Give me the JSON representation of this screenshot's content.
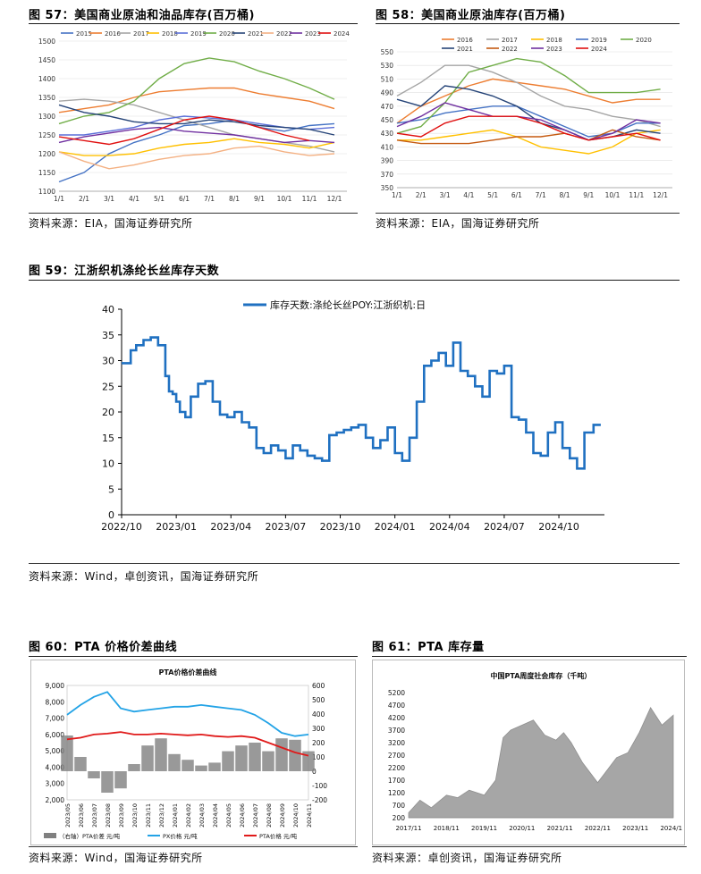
{
  "figures": {
    "f57": {
      "title": "图 57：美国商业原油和油品库存(百万桶)",
      "source": "资料来源：EIA，国海证券研究所"
    },
    "f58": {
      "title": "图 58：美国商业原油库存(百万桶)",
      "source": "资料来源：EIA，国海证券研究所"
    },
    "f59": {
      "title": "图 59：江浙织机涤纶长丝库存天数",
      "source": "资料来源：Wind，卓创资讯，国海证券研究所"
    },
    "f60": {
      "title": "图 60：PTA 价格价差曲线",
      "source": "资料来源：Wind，国海证券研究所"
    },
    "f61": {
      "title": "图 61：PTA 库存量",
      "source": "资料来源：卓创资讯，国海证券研究所"
    }
  },
  "chart_data": [
    {
      "id": "f57",
      "type": "line",
      "title": "",
      "x_tick_labels": [
        "1/1",
        "2/1",
        "3/1",
        "4/1",
        "5/1",
        "6/1",
        "7/1",
        "8/1",
        "9/1",
        "10/1",
        "11/1",
        "12/1"
      ],
      "y_ticks": [
        1100,
        1150,
        1200,
        1250,
        1300,
        1350,
        1400,
        1450,
        1500
      ],
      "ylim": [
        1100,
        1500
      ],
      "legend_position": "top",
      "x": [
        0,
        2,
        4,
        6,
        8,
        10,
        12,
        14,
        16,
        18,
        20,
        22
      ],
      "series": [
        {
          "name": "2015",
          "color": "#4472c4",
          "values": [
            1125,
            1150,
            1200,
            1230,
            1250,
            1275,
            1280,
            1290,
            1270,
            1260,
            1275,
            1280
          ]
        },
        {
          "name": "2016",
          "color": "#ed7d31",
          "values": [
            1310,
            1320,
            1330,
            1350,
            1365,
            1370,
            1375,
            1375,
            1360,
            1350,
            1340,
            1320
          ]
        },
        {
          "name": "2017",
          "color": "#a5a5a5",
          "values": [
            1340,
            1345,
            1340,
            1330,
            1310,
            1290,
            1270,
            1250,
            1240,
            1230,
            1220,
            1205
          ]
        },
        {
          "name": "2018",
          "color": "#ffc000",
          "values": [
            1205,
            1195,
            1195,
            1200,
            1215,
            1225,
            1230,
            1240,
            1230,
            1225,
            1215,
            1230
          ]
        },
        {
          "name": "2019",
          "color": "#5b6fd8",
          "values": [
            1250,
            1250,
            1260,
            1270,
            1290,
            1300,
            1295,
            1290,
            1280,
            1270,
            1265,
            1270
          ]
        },
        {
          "name": "2020",
          "color": "#70ad47",
          "values": [
            1280,
            1300,
            1310,
            1340,
            1400,
            1440,
            1455,
            1445,
            1420,
            1400,
            1375,
            1345
          ]
        },
        {
          "name": "2021",
          "color": "#264478",
          "values": [
            1330,
            1310,
            1300,
            1285,
            1280,
            1280,
            1290,
            1285,
            1275,
            1270,
            1265,
            1250
          ]
        },
        {
          "name": "2022",
          "color": "#f4b183",
          "values": [
            1205,
            1180,
            1160,
            1170,
            1185,
            1195,
            1200,
            1215,
            1220,
            1205,
            1195,
            1200
          ]
        },
        {
          "name": "2023",
          "color": "#7030a0",
          "values": [
            1230,
            1245,
            1255,
            1265,
            1270,
            1260,
            1255,
            1250,
            1240,
            1230,
            1235,
            1230
          ]
        },
        {
          "name": "2024",
          "color": "#e01010",
          "values": [
            1245,
            1235,
            1225,
            1240,
            1265,
            1290,
            1300,
            1290,
            1270,
            1250,
            1235,
            null
          ]
        }
      ]
    },
    {
      "id": "f58",
      "type": "line",
      "title": "",
      "x_tick_labels": [
        "1/1",
        "2/1",
        "3/1",
        "4/1",
        "5/1",
        "6/1",
        "7/1",
        "8/1",
        "9/1",
        "10/1",
        "11/1",
        "12/1"
      ],
      "y_ticks": [
        350,
        370,
        390,
        410,
        430,
        450,
        470,
        490,
        510,
        530,
        550
      ],
      "ylim": [
        350,
        550
      ],
      "legend_position": "top",
      "x": [
        0,
        2,
        4,
        6,
        8,
        10,
        12,
        14,
        16,
        18,
        20,
        22
      ],
      "series": [
        {
          "name": "2016",
          "color": "#ed7d31",
          "values": [
            445,
            470,
            485,
            500,
            510,
            505,
            500,
            495,
            485,
            475,
            480,
            480
          ]
        },
        {
          "name": "2017",
          "color": "#a5a5a5",
          "values": [
            485,
            505,
            530,
            530,
            520,
            505,
            485,
            470,
            465,
            455,
            450,
            440
          ]
        },
        {
          "name": "2018",
          "color": "#ffc000",
          "values": [
            420,
            420,
            425,
            430,
            435,
            425,
            410,
            405,
            400,
            410,
            430,
            435
          ]
        },
        {
          "name": "2019",
          "color": "#4472c4",
          "values": [
            445,
            450,
            460,
            465,
            470,
            470,
            455,
            440,
            425,
            430,
            445,
            445
          ]
        },
        {
          "name": "2020",
          "color": "#70ad47",
          "values": [
            430,
            440,
            475,
            520,
            530,
            540,
            535,
            515,
            490,
            490,
            490,
            495
          ]
        },
        {
          "name": "2021",
          "color": "#264478",
          "values": [
            480,
            470,
            500,
            495,
            485,
            470,
            445,
            435,
            420,
            425,
            435,
            430
          ]
        },
        {
          "name": "2022",
          "color": "#c55a11",
          "values": [
            420,
            415,
            415,
            415,
            420,
            425,
            425,
            430,
            420,
            435,
            425,
            420
          ]
        },
        {
          "name": "2023",
          "color": "#7030a0",
          "values": [
            440,
            455,
            475,
            465,
            455,
            455,
            450,
            435,
            420,
            430,
            450,
            445
          ]
        },
        {
          "name": "2024",
          "color": "#e01010",
          "values": [
            430,
            425,
            445,
            455,
            455,
            455,
            445,
            430,
            420,
            425,
            430,
            420
          ]
        }
      ]
    },
    {
      "id": "f59",
      "type": "line",
      "title": "",
      "legend": [
        "库存天数:涤纶长丝POY:江浙织机:日"
      ],
      "legend_position": "top",
      "x_tick_labels": [
        "2022/10",
        "2023/01",
        "2023/04",
        "2023/07",
        "2023/10",
        "2024/01",
        "2024/04",
        "2024/07",
        "2024/10"
      ],
      "y_ticks": [
        0,
        5,
        10,
        15,
        20,
        25,
        30,
        35,
        40
      ],
      "ylim": [
        0,
        40
      ],
      "xlim": [
        0,
        26.5
      ],
      "color": "#1f70c1",
      "x": [
        0,
        0.5,
        0.8,
        1.2,
        1.6,
        2.0,
        2.4,
        2.6,
        2.8,
        3.0,
        3.2,
        3.5,
        3.8,
        4.2,
        4.6,
        5.0,
        5.4,
        5.8,
        6.2,
        6.6,
        7.0,
        7.4,
        7.8,
        8.2,
        8.6,
        9.0,
        9.4,
        9.8,
        10.2,
        10.6,
        11.0,
        11.4,
        11.8,
        12.2,
        12.6,
        13.0,
        13.4,
        13.8,
        14.2,
        14.6,
        15.0,
        15.4,
        15.8,
        16.2,
        16.6,
        17.0,
        17.4,
        17.8,
        18.2,
        18.6,
        19.0,
        19.4,
        19.8,
        20.2,
        20.6,
        21.0,
        21.4,
        21.8,
        22.2,
        22.6,
        23.0,
        23.4,
        23.8,
        24.2,
        24.6,
        25.0,
        25.4,
        25.9
      ],
      "values": [
        29.5,
        32,
        33,
        34,
        34.5,
        33,
        27,
        24,
        23.5,
        22,
        20,
        19,
        23,
        25.5,
        26,
        22,
        19.5,
        19,
        20,
        18,
        17,
        13,
        12,
        13.5,
        12.5,
        11,
        13.5,
        12.5,
        11.5,
        11,
        10.5,
        15.5,
        16,
        16.5,
        17,
        17.5,
        15,
        13,
        14.5,
        17,
        12,
        10.5,
        15,
        22,
        29,
        30,
        31.5,
        29,
        33.5,
        28,
        27,
        25,
        23,
        28,
        27.5,
        29,
        19,
        18.5,
        16,
        12,
        11.5,
        16,
        18,
        13,
        11,
        9,
        16,
        17.5
      ]
    },
    {
      "id": "f60",
      "type": "line",
      "title": "PTA价格价差曲线",
      "x_tick_labels": [
        "2023/05",
        "2023/06",
        "2023/07",
        "2023/08",
        "2023/09",
        "2023/10",
        "2023/11",
        "2023/12",
        "2024/01",
        "2024/02",
        "2024/03",
        "2024/04",
        "2024/05",
        "2024/06",
        "2024/07",
        "2024/08",
        "2024/09",
        "2024/10",
        "2024/11"
      ],
      "y_left_ticks": [
        2000,
        3000,
        4000,
        5000,
        6000,
        7000,
        8000,
        9000
      ],
      "y_left_tick_labels": [
        "2,000",
        "3,000",
        "4,000",
        "5,000",
        "6,000",
        "7,000",
        "8,000",
        "9,000"
      ],
      "y_right_ticks": [
        -200,
        -100,
        0,
        100,
        200,
        300,
        400,
        500,
        600
      ],
      "ylim_left": [
        2000,
        9000
      ],
      "ylim_right": [
        -200,
        600
      ],
      "legend": [
        "（右轴）PTA价差 元/吨",
        "PX价格 元/吨",
        "PTA价格 元/吨"
      ],
      "legend_position": "bottom",
      "x": [
        0,
        1,
        2,
        3,
        4,
        5,
        6,
        7,
        8,
        9,
        10,
        11,
        12,
        13,
        14,
        15,
        16,
        17,
        18
      ],
      "series": [
        {
          "name": "（右轴）PTA价差 元/吨",
          "axis": "right",
          "color": "#808080",
          "values": [
            250,
            100,
            -50,
            -150,
            -120,
            50,
            180,
            230,
            120,
            80,
            40,
            60,
            140,
            180,
            200,
            140,
            230,
            220,
            140
          ]
        },
        {
          "name": "PX价格 元/吨",
          "axis": "left",
          "color": "#23a3e6",
          "values": [
            7200,
            7800,
            8300,
            8600,
            7600,
            7400,
            7500,
            7600,
            7700,
            7700,
            7800,
            7700,
            7600,
            7500,
            7200,
            6700,
            6100,
            5900,
            6000
          ]
        },
        {
          "name": "PTA价格 元/吨",
          "axis": "left",
          "color": "#e01a1a",
          "values": [
            5700,
            5800,
            6000,
            6050,
            6150,
            6000,
            6000,
            6050,
            6000,
            5950,
            6000,
            5900,
            5850,
            5900,
            5800,
            5500,
            5200,
            4900,
            4700
          ]
        }
      ]
    },
    {
      "id": "f61",
      "type": "area",
      "title": "中国PTA周度社会库存（千吨）",
      "x_tick_labels": [
        "2017/11",
        "2018/11",
        "2019/11",
        "2020/11",
        "2021/11",
        "2022/11",
        "2023/11",
        "2024/11"
      ],
      "y_ticks": [
        200,
        700,
        1200,
        1700,
        2200,
        2700,
        3200,
        3700,
        4200,
        4700,
        5200
      ],
      "ylim": [
        200,
        5200
      ],
      "color": "#a6a6a6",
      "x": [
        0,
        0.3,
        0.6,
        1.0,
        1.3,
        1.6,
        2.0,
        2.3,
        2.5,
        2.7,
        3.0,
        3.3,
        3.6,
        3.9,
        4.1,
        4.3,
        4.6,
        5.0,
        5.2,
        5.5,
        5.8,
        6.1,
        6.4,
        6.7,
        7.0
      ],
      "values": [
        400,
        900,
        600,
        1100,
        1000,
        1300,
        1100,
        1700,
        3400,
        3700,
        3900,
        4100,
        3500,
        3300,
        3600,
        3200,
        2400,
        1600,
        2000,
        2600,
        2800,
        3600,
        4600,
        3900,
        4300
      ]
    }
  ]
}
